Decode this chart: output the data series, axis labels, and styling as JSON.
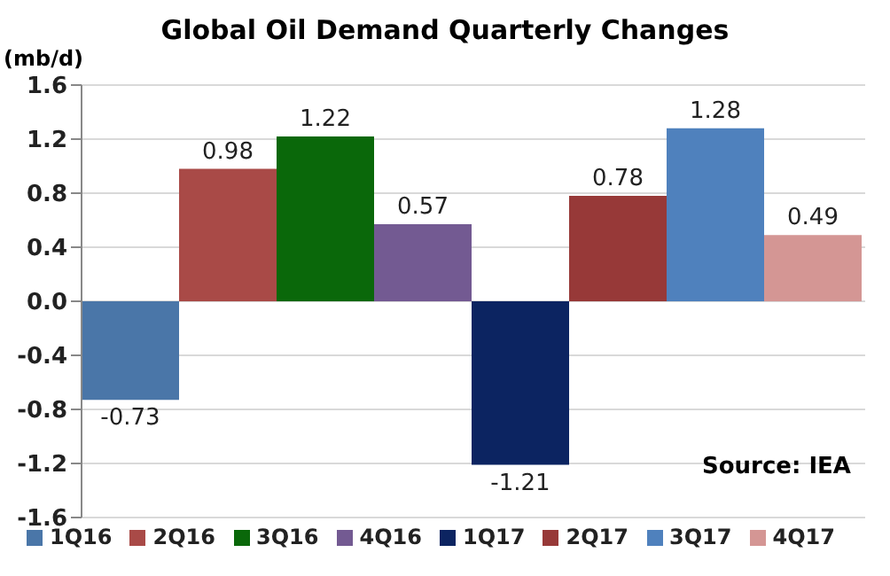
{
  "chart_data": {
    "type": "bar",
    "title": "Global Oil Demand Quarterly Changes",
    "ylabel": "(mb/d)",
    "categories": [
      null
    ],
    "series": [
      {
        "name": "1Q16",
        "color": "#4a76a8",
        "values": [
          -0.73
        ]
      },
      {
        "name": "2Q16",
        "color": "#a94a47",
        "values": [
          0.98
        ]
      },
      {
        "name": "3Q16",
        "color": "#0a680a",
        "values": [
          1.22
        ]
      },
      {
        "name": "4Q16",
        "color": "#735a92",
        "values": [
          0.57
        ]
      },
      {
        "name": "1Q17",
        "color": "#0c2461",
        "values": [
          -1.21
        ]
      },
      {
        "name": "2Q17",
        "color": "#973938",
        "values": [
          0.78
        ]
      },
      {
        "name": "3Q17",
        "color": "#4f81bd",
        "values": [
          1.28
        ]
      },
      {
        "name": "4Q17",
        "color": "#d49694",
        "values": [
          0.49
        ]
      }
    ],
    "ylim": [
      -1.6,
      1.6
    ],
    "yticks": [
      -1.6,
      -1.2,
      -0.8,
      -0.4,
      {
        "value": 0,
        "label": "0.0"
      },
      0.4,
      0.8,
      1.2,
      1.6
    ],
    "grid": "y",
    "legend": "bottom",
    "tick_labels": "y",
    "data_labels": true,
    "annotations": [
      "Source: IEA"
    ]
  }
}
